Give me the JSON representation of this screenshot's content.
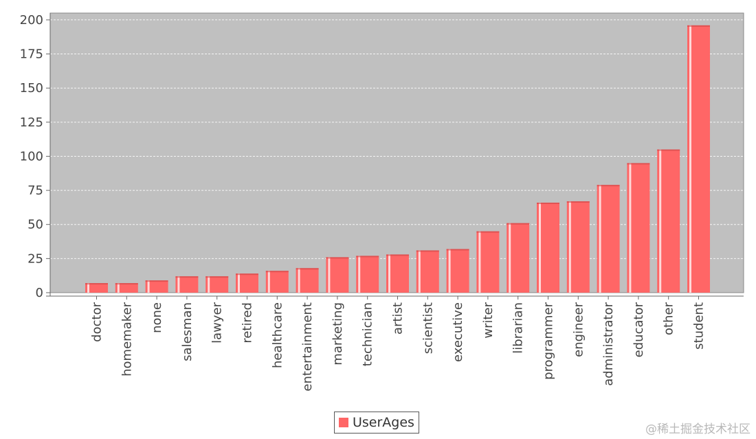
{
  "chart_data": {
    "type": "bar",
    "categories": [
      "doctor",
      "homemaker",
      "none",
      "salesman",
      "lawyer",
      "retired",
      "healthcare",
      "entertainment",
      "marketing",
      "technician",
      "artist",
      "scientist",
      "executive",
      "writer",
      "librarian",
      "programmer",
      "engineer",
      "administrator",
      "educator",
      "other",
      "student"
    ],
    "series": [
      {
        "name": "UserAges",
        "values": [
          7,
          7,
          9,
          12,
          12,
          14,
          16,
          18,
          26,
          27,
          28,
          31,
          32,
          45,
          51,
          66,
          67,
          79,
          95,
          105,
          196
        ]
      }
    ],
    "yticks": [
      0,
      25,
      50,
      75,
      100,
      125,
      150,
      175,
      200
    ],
    "ylim": [
      0,
      205
    ],
    "grid": true,
    "legend": "bottom-center"
  },
  "colors": {
    "bar": "#ff6666",
    "plot_bg": "#c0c0c0",
    "grid": "#ffffff"
  },
  "watermark": "@稀土掘金技术社区"
}
